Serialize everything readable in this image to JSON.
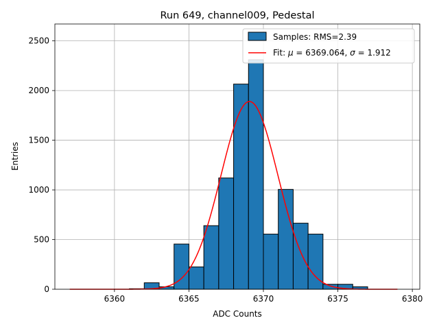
{
  "chart_data": {
    "type": "bar",
    "title": "Run 649, channel009, Pedestal",
    "xlabel": "ADC Counts",
    "ylabel": "Entries",
    "xlim": [
      6356,
      6380.5
    ],
    "ylim": [
      0,
      2670
    ],
    "xticks": [
      6360,
      6365,
      6370,
      6375,
      6380
    ],
    "yticks": [
      0,
      500,
      1000,
      1500,
      2000,
      2500
    ],
    "grid": true,
    "legend_position": "top-right",
    "legend": {
      "samples_label": "Samples: RMS=2.39",
      "fit_label_prefix": "Fit: ",
      "fit_mu_symbol": "μ",
      "fit_mu_value": " = 6369.064, ",
      "fit_sigma_symbol": "σ",
      "fit_sigma_value": " = 1.912"
    },
    "histogram": {
      "name": "Samples",
      "bin_width": 1,
      "bin_edges_start": [
        6361,
        6362,
        6363,
        6364,
        6365,
        6366,
        6367,
        6368,
        6369,
        6370,
        6371,
        6372,
        6373,
        6374,
        6375,
        6376
      ],
      "counts": [
        5,
        65,
        25,
        455,
        225,
        640,
        1120,
        2065,
        2310,
        555,
        1005,
        665,
        555,
        50,
        50,
        25
      ],
      "color": "#1f77b4",
      "edge_color": "#000000"
    },
    "fit": {
      "name": "Fit",
      "type": "gaussian",
      "mu": 6369.064,
      "sigma": 1.912,
      "amplitude": 1890,
      "x_range": [
        6357,
        6379
      ],
      "color": "#ff0000"
    }
  }
}
